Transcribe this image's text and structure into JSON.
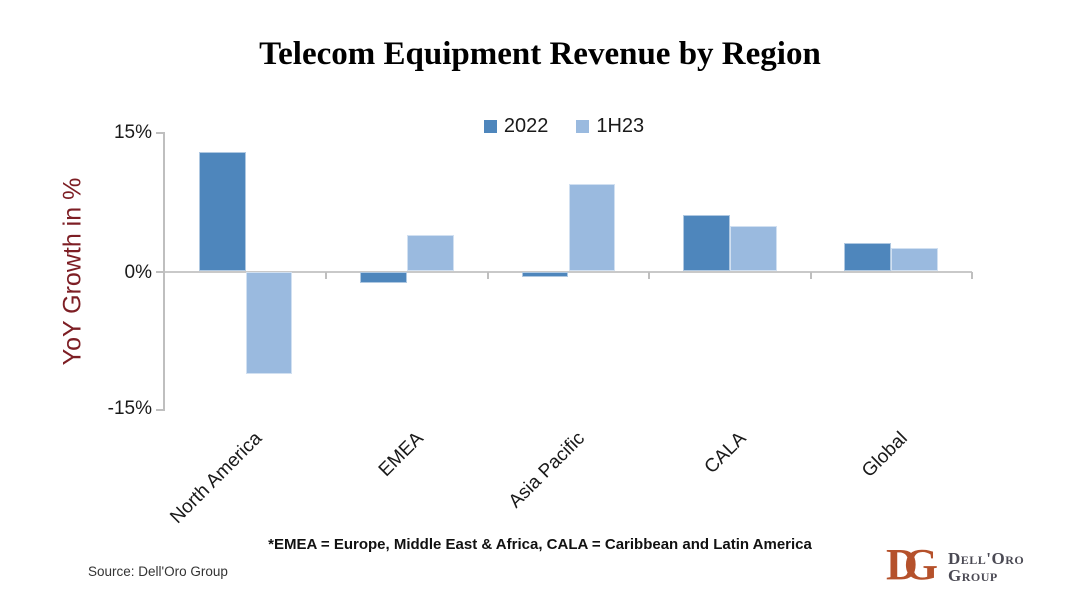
{
  "title": "Telecom Equipment Revenue by Region",
  "legend": {
    "items": [
      {
        "label": "2022",
        "color": "#4E86BC"
      },
      {
        "label": "1H23",
        "color": "#9ABADF"
      }
    ]
  },
  "y_axis": {
    "label": "YoY Growth in %",
    "label_color": "#7D1E24",
    "tick_labels": {
      "top": "15%",
      "middle": "0%",
      "bottom": "-15%"
    }
  },
  "footnote": "*EMEA = Europe, Middle East & Africa, CALA = Caribbean and Latin America",
  "source": "Source: Dell'Oro Group",
  "logo": {
    "letter1": "D",
    "letter2": "G",
    "monogram_color": "#B5512B",
    "line1": "Dell'Oro",
    "line2": "Group",
    "text_color": "#4B4A54"
  },
  "chart_data": {
    "type": "bar",
    "title": "Telecom Equipment Revenue by Region",
    "xlabel": "",
    "ylabel": "YoY Growth in %",
    "categories": [
      "North America",
      "EMEA",
      "Asia Pacific",
      "CALA",
      "Global"
    ],
    "series": [
      {
        "name": "2022",
        "color": "#4E86BC",
        "values": [
          12.9,
          -1.2,
          -0.6,
          6.1,
          3.1
        ]
      },
      {
        "name": "1H23",
        "color": "#9ABADF",
        "values": [
          -11.1,
          3.9,
          9.5,
          4.9,
          2.5
        ]
      }
    ],
    "ylim": [
      -15,
      15
    ],
    "yticks": [
      15,
      0,
      -15
    ],
    "grid": false,
    "legend_position": "top-center",
    "bar_group_fill_ratio": 0.58
  }
}
